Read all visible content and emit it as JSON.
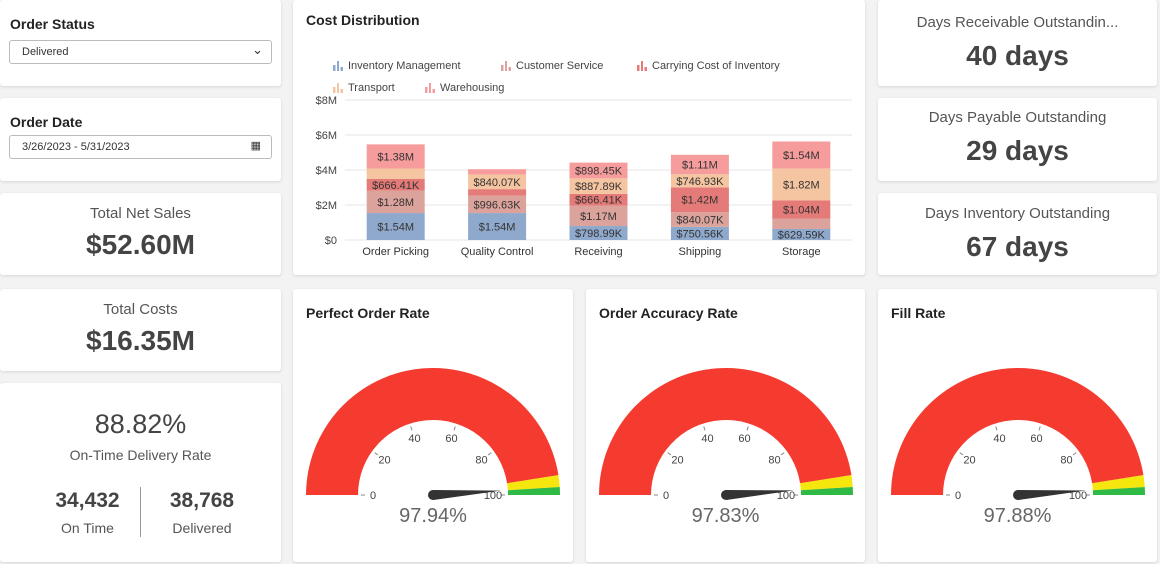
{
  "order_status": {
    "title": "Order Status",
    "value": "Delivered"
  },
  "order_date": {
    "title": "Order Date",
    "value": "3/26/2023 - 5/31/2023"
  },
  "net_sales": {
    "label": "Total Net Sales",
    "value": "$52.60M"
  },
  "total_costs": {
    "label": "Total Costs",
    "value": "$16.35M"
  },
  "otd": {
    "value": "88.82%",
    "label": "On-Time Delivery Rate",
    "on_time": "34,432",
    "on_time_label": "On Time",
    "delivered": "38,768",
    "delivered_label": "Delivered"
  },
  "dro": {
    "label": "Days Receivable Outstandin...",
    "value": "40 days"
  },
  "dpo": {
    "label": "Days Payable Outstanding",
    "value": "29 days"
  },
  "dio": {
    "label": "Days Inventory Outstanding",
    "value": "67 days"
  },
  "chart_data": {
    "type": "bar",
    "stacked": true,
    "title": "Cost Distribution",
    "categories": [
      "Order Picking",
      "Quality Control",
      "Receiving",
      "Shipping",
      "Storage"
    ],
    "ylim": [
      0,
      8
    ],
    "yticks": [
      "$0",
      "$2M",
      "$4M",
      "$6M",
      "$8M"
    ],
    "legend": "top",
    "grid": true,
    "series": [
      {
        "name": "Inventory Management",
        "color": "#8fa9cc",
        "values": [
          1.54,
          1.54,
          0.79899,
          0.75056,
          0.62959
        ],
        "labels": [
          "$1.54M",
          "$1.54M",
          "$798.99K",
          "$750.56K",
          "$629.59K"
        ]
      },
      {
        "name": "Customer Service",
        "color": "#dca39c",
        "values": [
          1.28,
          0.99663,
          1.17,
          0.84007,
          0.6
        ],
        "labels": [
          "$1.28M",
          "$996.63K",
          "$1.17M",
          "$840.07K",
          ""
        ]
      },
      {
        "name": "Carrying Cost of Inventory",
        "color": "#e47b78",
        "values": [
          0.66641,
          0.37,
          0.66641,
          1.42,
          1.04
        ],
        "labels": [
          "$666.41K",
          "",
          "$666.41K",
          "$1.42M",
          "$1.04M"
        ]
      },
      {
        "name": "Transport",
        "color": "#f5c4a0",
        "values": [
          0.6,
          0.84007,
          0.88789,
          0.74693,
          1.82
        ],
        "labels": [
          "",
          "$840.07K",
          "$887.89K",
          "$746.93K",
          "$1.82M"
        ]
      },
      {
        "name": "Warehousing",
        "color": "#f69c9c",
        "values": [
          1.38,
          0.3,
          0.89845,
          1.11,
          1.54
        ],
        "labels": [
          "$1.38M",
          "",
          "$898.45K",
          "$1.11M",
          "$1.54M"
        ]
      }
    ]
  },
  "gauges": [
    {
      "title": "Perfect Order Rate",
      "value": 97.94,
      "display": "97.94%"
    },
    {
      "title": "Order Accuracy Rate",
      "value": 97.83,
      "display": "97.83%"
    },
    {
      "title": "Fill Rate",
      "value": 97.88,
      "display": "97.88%"
    }
  ],
  "gauge_scale": {
    "ticks": [
      "0",
      "20",
      "40",
      "60",
      "80",
      "100"
    ],
    "bands": [
      {
        "to": 95,
        "color": "#f53b2f"
      },
      {
        "to": 98,
        "color": "#f5e60e"
      },
      {
        "to": 100,
        "color": "#2fb945"
      }
    ]
  }
}
